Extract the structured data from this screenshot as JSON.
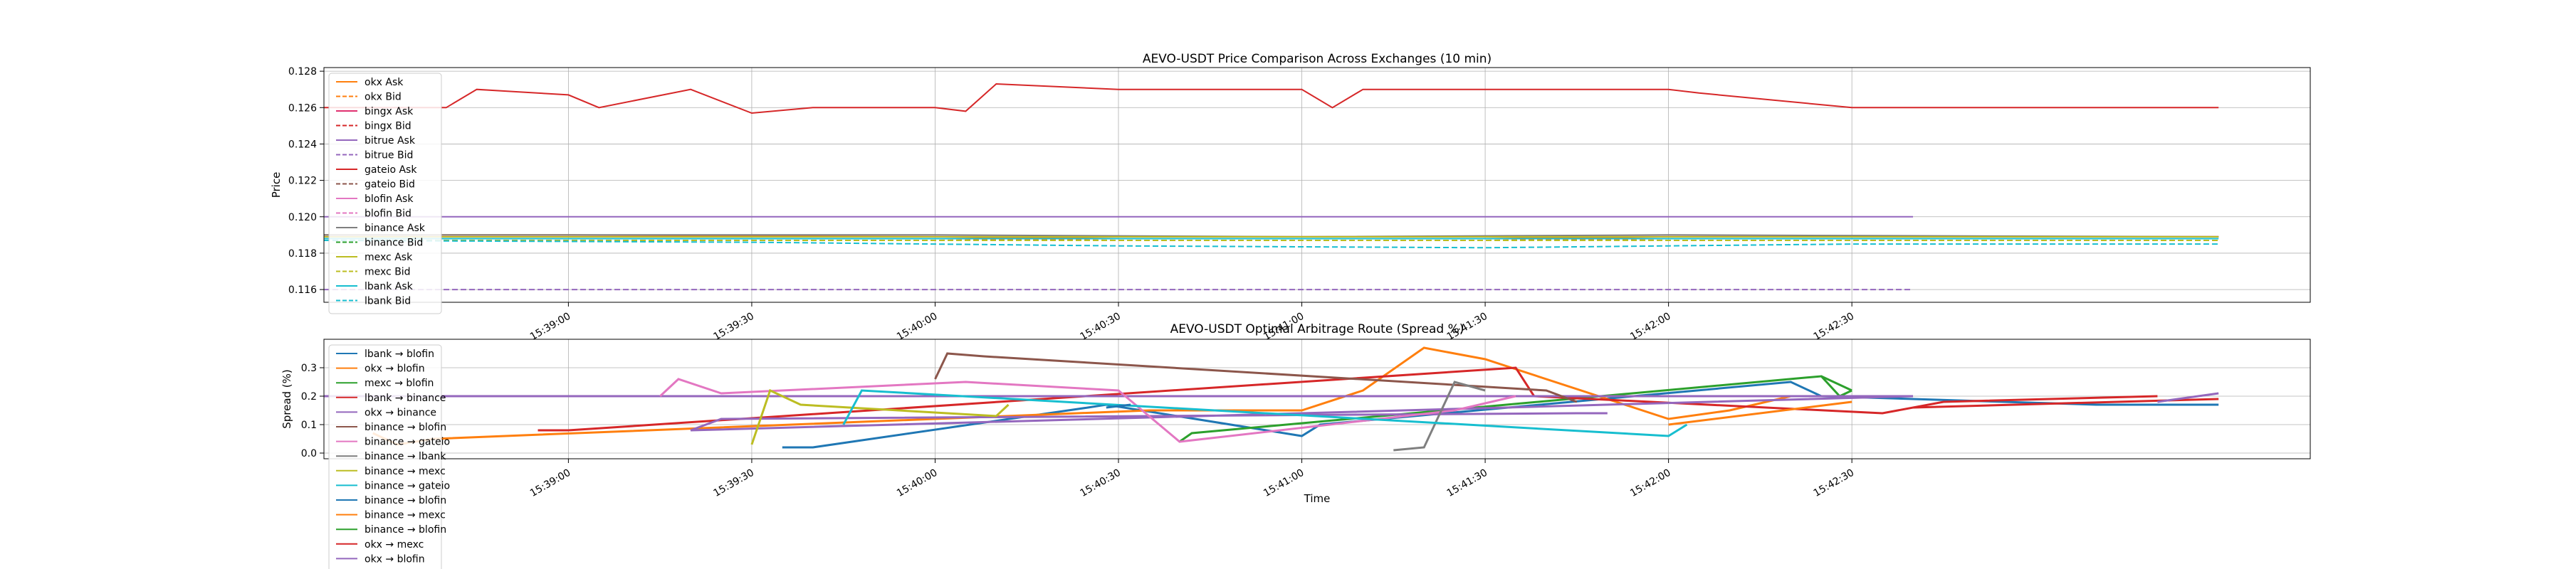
{
  "colors": {
    "okx": "#ff7f0e",
    "bingx": "#d62728",
    "bitrue": "#9467bd",
    "gateio": "#8c564b",
    "blofin": "#e377c2",
    "binance": "#7f7f7f",
    "mexc": "#bcbd22",
    "lbank": "#17becf"
  },
  "chart_data": [
    {
      "type": "line",
      "title": "AEVO-USDT Price Comparison Across Exchanges (10 min)",
      "xlabel": "",
      "ylabel": "Price",
      "x_range": [
        "15:38:20",
        "15:43:45"
      ],
      "ylim": [
        0.1153,
        0.1282
      ],
      "y_ticks": [
        0.116,
        0.118,
        0.12,
        0.122,
        0.124,
        0.126,
        0.128
      ],
      "x_ticks": [
        "15:39:00",
        "15:39:30",
        "15:40:00",
        "15:40:30",
        "15:41:00",
        "15:41:30",
        "15:42:00",
        "15:42:30"
      ],
      "grid": true,
      "legend": "upper-left",
      "series": [
        {
          "name": "okx Ask",
          "color": "#ff7f0e",
          "dash": false,
          "x": [
            "15:38:20",
            "15:39:00",
            "15:40:00",
            "15:40:30",
            "15:41:00",
            "15:41:30",
            "15:42:00",
            "15:42:30",
            "15:43:30"
          ],
          "y": [
            0.119,
            0.119,
            0.1189,
            0.1188,
            0.1188,
            0.1188,
            0.1189,
            0.1189,
            0.1189
          ]
        },
        {
          "name": "okx Bid",
          "color": "#ff7f0e",
          "dash": true,
          "x": [
            "15:38:20",
            "15:39:00",
            "15:40:00",
            "15:40:30",
            "15:41:00",
            "15:41:30",
            "15:42:00",
            "15:42:30",
            "15:43:30"
          ],
          "y": [
            0.1188,
            0.1188,
            0.1188,
            0.1187,
            0.1187,
            0.1187,
            0.1188,
            0.1188,
            0.1188
          ]
        },
        {
          "name": "bingx Ask",
          "color": "#e0306f",
          "dash": false,
          "x": [
            "15:38:20",
            "15:43:30"
          ],
          "y": [
            0.1189,
            0.1189
          ]
        },
        {
          "name": "bingx Bid",
          "color": "#d62728",
          "dash": true,
          "x": [
            "15:38:20",
            "15:43:30"
          ],
          "y": [
            0.1187,
            0.1187
          ]
        },
        {
          "name": "bitrue Ask",
          "color": "#9467bd",
          "dash": false,
          "x": [
            "15:38:20",
            "15:42:40"
          ],
          "y": [
            0.12,
            0.12
          ]
        },
        {
          "name": "bitrue Bid",
          "color": "#9467bd",
          "dash": true,
          "x": [
            "15:38:20",
            "15:42:40"
          ],
          "y": [
            0.116,
            0.116
          ]
        },
        {
          "name": "gateio Ask",
          "color": "#d62728",
          "dash": false,
          "x": [
            "15:38:20",
            "15:38:40",
            "15:38:45",
            "15:39:00",
            "15:39:05",
            "15:39:20",
            "15:39:30",
            "15:39:40",
            "15:40:00",
            "15:40:05",
            "15:40:10",
            "15:40:30",
            "15:41:00",
            "15:41:05",
            "15:41:10",
            "15:41:30",
            "15:42:00",
            "15:42:05",
            "15:42:30",
            "15:43:30"
          ],
          "y": [
            0.126,
            0.126,
            0.127,
            0.1267,
            0.126,
            0.127,
            0.1257,
            0.126,
            0.126,
            0.1258,
            0.1273,
            0.127,
            0.127,
            0.126,
            0.127,
            0.127,
            0.127,
            0.1268,
            0.126,
            0.126
          ]
        },
        {
          "name": "gateio Bid",
          "color": "#8c564b",
          "dash": true,
          "x": [
            "15:38:20",
            "15:43:30"
          ],
          "y": [
            0.1188,
            0.1188
          ]
        },
        {
          "name": "blofin Ask",
          "color": "#e377c2",
          "dash": false,
          "x": [
            "15:38:20",
            "15:43:30"
          ],
          "y": [
            0.1189,
            0.1189
          ]
        },
        {
          "name": "blofin Bid",
          "color": "#e377c2",
          "dash": true,
          "x": [
            "15:38:20",
            "15:43:30"
          ],
          "y": [
            0.1187,
            0.1187
          ]
        },
        {
          "name": "binance Ask",
          "color": "#7f7f7f",
          "dash": false,
          "x": [
            "15:38:20",
            "15:39:00",
            "15:40:00",
            "15:41:00",
            "15:42:00",
            "15:43:30"
          ],
          "y": [
            0.119,
            0.119,
            0.119,
            0.1189,
            0.119,
            0.1189
          ]
        },
        {
          "name": "binance Bid",
          "color": "#2ca02c",
          "dash": true,
          "x": [
            "15:38:20",
            "15:43:30"
          ],
          "y": [
            0.1188,
            0.1188
          ]
        },
        {
          "name": "mexc Ask",
          "color": "#bcbd22",
          "dash": false,
          "x": [
            "15:38:20",
            "15:43:30"
          ],
          "y": [
            0.1189,
            0.1189
          ]
        },
        {
          "name": "mexc Bid",
          "color": "#bcbd22",
          "dash": true,
          "x": [
            "15:38:20",
            "15:43:30"
          ],
          "y": [
            0.1187,
            0.1187
          ]
        },
        {
          "name": "lbank Ask",
          "color": "#17becf",
          "dash": false,
          "x": [
            "15:38:20",
            "15:43:30"
          ],
          "y": [
            0.1188,
            0.1188
          ]
        },
        {
          "name": "lbank Bid",
          "color": "#17becf",
          "dash": true,
          "x": [
            "15:38:20",
            "15:39:30",
            "15:40:30",
            "15:41:30",
            "15:42:00",
            "15:42:30",
            "15:43:30"
          ],
          "y": [
            0.1187,
            0.1186,
            0.1184,
            0.1183,
            0.1184,
            0.1185,
            0.1185
          ]
        }
      ]
    },
    {
      "type": "line",
      "title": "AEVO-USDT Optimal Arbitrage Route (Spread %)",
      "xlabel": "Time",
      "ylabel": "Spread (%)",
      "x_range": [
        "15:38:20",
        "15:43:45"
      ],
      "ylim": [
        -0.02,
        0.4
      ],
      "y_ticks": [
        0.0,
        0.1,
        0.2,
        0.3
      ],
      "y_tick_labels": [
        "0.0",
        "0.1",
        "0.2",
        "0.3"
      ],
      "x_ticks": [
        "15:39:00",
        "15:39:30",
        "15:40:00",
        "15:40:30",
        "15:41:00",
        "15:41:30",
        "15:42:00",
        "15:42:30"
      ],
      "grid": true,
      "legend": "upper-left",
      "series": [
        {
          "name": "lbank → blofin",
          "color": "#1f77b4",
          "x": [
            "15:39:35",
            "15:39:40",
            "15:40:25",
            "15:40:28",
            "15:41:00",
            "15:41:03",
            "15:42:20",
            "15:42:25",
            "15:43:10",
            "15:43:30"
          ],
          "y": [
            0.02,
            0.02,
            0.16,
            0.17,
            0.06,
            0.1,
            0.25,
            0.2,
            0.17,
            0.17
          ]
        },
        {
          "name": "okx → blofin",
          "color": "#ff7f0e",
          "x": [
            "15:38:28",
            "15:38:32",
            "15:38:38",
            "15:40:35",
            "15:41:00",
            "15:41:10",
            "15:41:20",
            "15:41:30",
            "15:42:00",
            "15:42:10",
            "15:42:20",
            "15:42:30"
          ],
          "y": [
            0.07,
            0.03,
            0.05,
            0.15,
            0.15,
            0.22,
            0.37,
            0.33,
            0.12,
            0.15,
            0.2,
            0.2
          ]
        },
        {
          "name": "mexc → blofin",
          "color": "#2ca02c",
          "x": [
            "15:40:40",
            "15:40:42",
            "15:42:25",
            "15:42:28",
            "15:42:30"
          ],
          "y": [
            0.04,
            0.07,
            0.27,
            0.2,
            0.22
          ]
        },
        {
          "name": "lbank → binance",
          "color": "#d62728",
          "x": [
            "15:38:55",
            "15:39:00",
            "15:41:35",
            "15:41:38",
            "15:42:35",
            "15:42:45",
            "15:43:20"
          ],
          "y": [
            0.08,
            0.08,
            0.3,
            0.2,
            0.14,
            0.18,
            0.2
          ]
        },
        {
          "name": "okx → binance",
          "color": "#9467bd",
          "x": [
            "15:38:20",
            "15:42:40",
            "15:39:20",
            "15:39:25",
            "15:41:45",
            "15:41:50"
          ],
          "y": [
            0.2,
            0.2,
            0.08,
            0.12,
            0.14,
            0.14
          ]
        },
        {
          "name": "binance → blofin",
          "color": "#8c564b",
          "x": [
            "15:40:00",
            "15:40:02",
            "15:40:08",
            "15:41:40",
            "15:41:45"
          ],
          "y": [
            0.26,
            0.35,
            0.34,
            0.22,
            0.18
          ]
        },
        {
          "name": "binance → gateio",
          "color": "#e377c2",
          "x": [
            "15:39:15",
            "15:39:18",
            "15:39:25",
            "15:40:05",
            "15:40:30",
            "15:40:40",
            "15:41:25",
            "15:41:35"
          ],
          "y": [
            0.2,
            0.26,
            0.21,
            0.25,
            0.22,
            0.04,
            0.15,
            0.2
          ]
        },
        {
          "name": "binance → lbank",
          "color": "#7f7f7f",
          "x": [
            "15:41:15",
            "15:41:20",
            "15:41:25",
            "15:41:30"
          ],
          "y": [
            0.01,
            0.02,
            0.25,
            0.22
          ]
        },
        {
          "name": "binance → mexc",
          "color": "#bcbd22",
          "x": [
            "15:39:30",
            "15:39:33",
            "15:39:38",
            "15:40:10",
            "15:40:12"
          ],
          "y": [
            0.03,
            0.22,
            0.17,
            0.13,
            0.17
          ]
        },
        {
          "name": "binance → gateio",
          "color": "#17becf",
          "x": [
            "15:39:45",
            "15:39:48",
            "15:42:00",
            "15:42:03"
          ],
          "y": [
            0.1,
            0.22,
            0.06,
            0.1
          ]
        },
        {
          "name": "binance → blofin",
          "color": "#1f77b4",
          "x": [
            "15:40:28",
            "15:40:32"
          ],
          "y": [
            0.16,
            0.17
          ]
        },
        {
          "name": "binance → mexc",
          "color": "#ff7f0e",
          "x": [
            "15:42:00",
            "15:42:30"
          ],
          "y": [
            0.1,
            0.18
          ]
        },
        {
          "name": "binance → blofin",
          "color": "#2ca02c",
          "x": [
            "15:42:25",
            "15:42:30"
          ],
          "y": [
            0.27,
            0.22
          ]
        },
        {
          "name": "okx → mexc",
          "color": "#d62728",
          "x": [
            "15:42:40",
            "15:43:30"
          ],
          "y": [
            0.16,
            0.19
          ]
        },
        {
          "name": "okx → blofin",
          "color": "#9467bd",
          "x": [
            "15:43:20",
            "15:43:30"
          ],
          "y": [
            0.18,
            0.21
          ]
        }
      ]
    }
  ]
}
